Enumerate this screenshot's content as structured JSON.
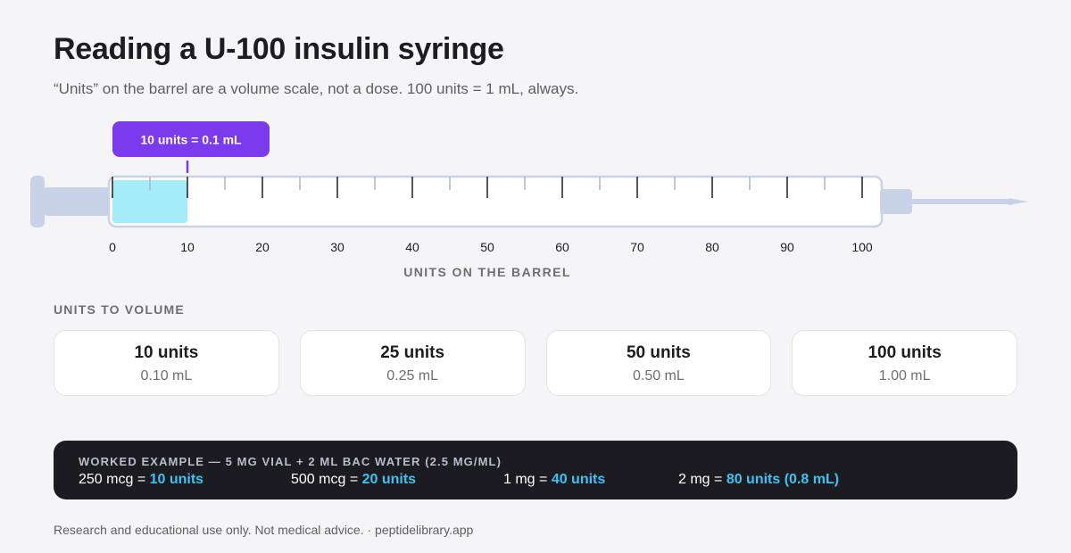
{
  "header": {
    "title": "Reading a U-100 insulin syringe",
    "subtitle": "“Units” on the barrel are a volume scale, not a dose. 100 units = 1 mL, always."
  },
  "diagram": {
    "callout_label": "10 units = 0.1 mL",
    "fill_units": 10,
    "scale_max": 100,
    "major_ticks": [
      0,
      10,
      20,
      30,
      40,
      50,
      60,
      70,
      80,
      90,
      100
    ],
    "minor_ticks": [
      5,
      15,
      25,
      35,
      45,
      55,
      65,
      75,
      85,
      95
    ],
    "tick_labels": [
      "0",
      "10",
      "20",
      "30",
      "40",
      "50",
      "60",
      "70",
      "80",
      "90",
      "100"
    ],
    "axis_title": "UNITS ON THE BARREL",
    "colors": {
      "fill": "#a5ecfb",
      "callout": "#7c3aed",
      "syringe_parts": "#c9d3e8",
      "barrel_border": "#c9d3e8"
    }
  },
  "units_to_volume": {
    "label": "UNITS TO VOLUME",
    "cards": [
      {
        "units": "10 units",
        "ml": "0.10 mL"
      },
      {
        "units": "25 units",
        "ml": "0.25 mL"
      },
      {
        "units": "50 units",
        "ml": "0.50 mL"
      },
      {
        "units": "100 units",
        "ml": "1.00 mL"
      }
    ]
  },
  "worked_example": {
    "title": "WORKED EXAMPLE — 5 MG VIAL + 2 ML BAC WATER (2.5 MG/ML)",
    "items": [
      {
        "prefix": "250 mcg = ",
        "result": "10 units"
      },
      {
        "prefix": "500 mcg = ",
        "result": "20 units"
      },
      {
        "prefix": "1 mg = ",
        "result": "40 units"
      },
      {
        "prefix": "2 mg = ",
        "result": "80 units (0.8 mL)"
      }
    ],
    "colors": {
      "background": "#1c1c20",
      "accent": "#3ec1f3"
    }
  },
  "footer": {
    "text": "Research and educational use only. Not medical advice. · peptidelibrary.app"
  }
}
